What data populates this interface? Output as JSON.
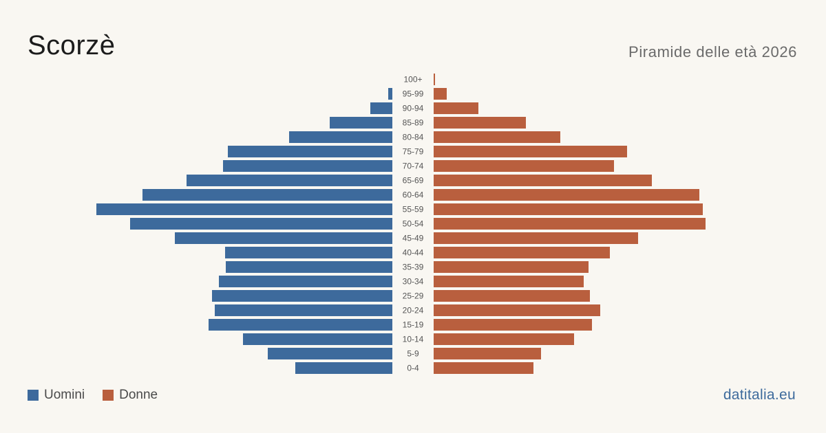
{
  "header": {
    "title": "Scorzè",
    "subtitle": "Piramide delle età 2026"
  },
  "legend": {
    "men_label": "Uomini",
    "women_label": "Donne"
  },
  "footer": {
    "brand": "datitalia.eu"
  },
  "colors": {
    "men": "#3d6a9c",
    "women": "#b95f3e",
    "brand": "#3d6a9c",
    "background": "#f9f7f2"
  },
  "chart_data": {
    "type": "bar",
    "orientation": "horizontal-pyramid",
    "categories": [
      "100+",
      "95-99",
      "90-94",
      "85-89",
      "80-84",
      "75-79",
      "70-74",
      "65-69",
      "60-64",
      "55-59",
      "50-54",
      "45-49",
      "40-44",
      "35-39",
      "30-34",
      "25-29",
      "20-24",
      "15-19",
      "10-14",
      "5-9",
      "0-4"
    ],
    "series": [
      {
        "name": "Uomini",
        "values": [
          0,
          6,
          32,
          91,
          150,
          239,
          246,
          299,
          363,
          430,
          381,
          316,
          243,
          242,
          252,
          262,
          258,
          267,
          217,
          181,
          141
        ]
      },
      {
        "name": "Donne",
        "values": [
          2,
          19,
          65,
          134,
          184,
          281,
          262,
          317,
          386,
          391,
          395,
          297,
          256,
          225,
          218,
          227,
          242,
          230,
          204,
          156,
          145
        ]
      }
    ],
    "legend_position": "bottom-left",
    "grid": false
  }
}
